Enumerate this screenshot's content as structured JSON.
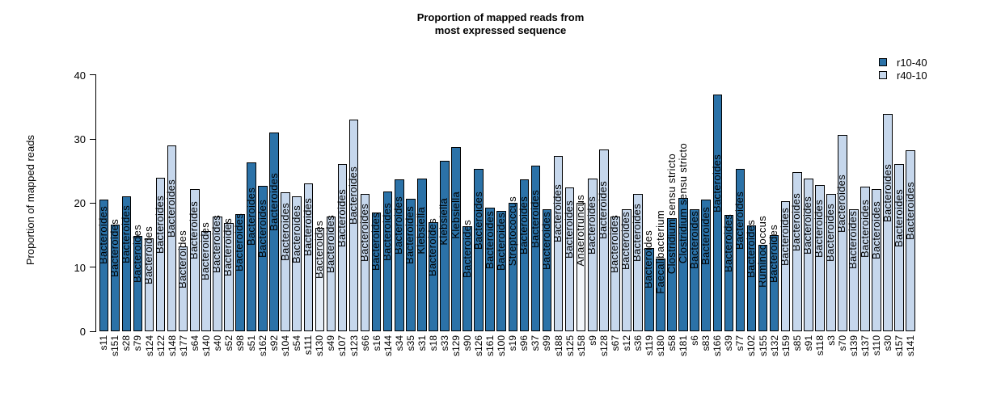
{
  "title": {
    "line1": "Proportion of mapped reads from",
    "line2": "most expressed sequence"
  },
  "y_axis": {
    "label": "Proportion of mapped reads",
    "ticks": [
      0,
      10,
      20,
      30,
      40
    ]
  },
  "legend": {
    "items": [
      {
        "label": "r10-40",
        "color": "#2b72a8"
      },
      {
        "label": "r40-10",
        "color": "#c6d7ec"
      }
    ]
  },
  "colors": {
    "dark_group": "#2b72a8",
    "light_group": "#c6d7ec",
    "bar_border": "#000000",
    "background": "#ffffff"
  },
  "chart_data": {
    "type": "bar",
    "title": "Proportion of mapped reads from most expressed sequence",
    "xlabel": "",
    "ylabel": "Proportion of mapped reads",
    "ylim": [
      0,
      40
    ],
    "grid": false,
    "legend_position": "top-right",
    "series_legend": [
      "r10-40",
      "r40-10"
    ],
    "categories": [
      "s11",
      "s151",
      "s28",
      "s79",
      "s124",
      "s122",
      "s148",
      "s177",
      "s64",
      "s140",
      "s40",
      "s52",
      "s98",
      "s51",
      "s162",
      "s92",
      "s104",
      "s54",
      "s111",
      "s130",
      "s49",
      "s107",
      "s123",
      "s66",
      "s16",
      "s144",
      "s34",
      "s35",
      "s31",
      "s18",
      "s33",
      "s129",
      "s90",
      "s126",
      "s161",
      "s100",
      "s19",
      "s96",
      "s37",
      "s99",
      "s188",
      "s125",
      "s158",
      "s9",
      "s128",
      "s67",
      "s12",
      "s36",
      "s119",
      "s180",
      "s58",
      "s181",
      "s6",
      "s83",
      "s166",
      "s39",
      "s77",
      "s102",
      "s155",
      "s132",
      "s159",
      "s85",
      "s91",
      "s118",
      "s3",
      "s70",
      "s139",
      "s137",
      "s110",
      "s30",
      "s157",
      "s141"
    ],
    "values": [
      20.6,
      16.6,
      21.0,
      14.9,
      14.5,
      23.9,
      29.0,
      13.2,
      22.2,
      15.7,
      17.9,
      16.9,
      18.3,
      26.4,
      22.7,
      31.0,
      21.7,
      21.0,
      23.1,
      16.1,
      17.9,
      26.1,
      33.0,
      21.5,
      18.6,
      21.8,
      23.7,
      20.7,
      23.8,
      17.0,
      26.6,
      28.7,
      16.4,
      25.3,
      19.3,
      18.8,
      20.0,
      23.7,
      25.8,
      19.0,
      27.4,
      22.4,
      20.0,
      23.8,
      28.4,
      17.9,
      19.0,
      21.5,
      13.0,
      11.3,
      17.7,
      20.8,
      19.1,
      20.5,
      36.9,
      18.1,
      25.3,
      16.5,
      13.5,
      15.0,
      20.3,
      24.8,
      23.8,
      22.8,
      21.4,
      30.6,
      19.1,
      22.6,
      22.2,
      33.9,
      26.1,
      28.2
    ],
    "bar_taxon_labels": [
      "Bacteroides",
      "Bacteroides",
      "Bacteroides",
      "Bacteroides",
      "Bacteroides",
      "Bacteroides",
      "Bacteroides",
      "Bacteroides",
      "Bacteroides",
      "Bacteroides",
      "Bacteroides",
      "Bacteroides",
      "Bacteroides",
      "Bacteroides",
      "Bacteroides",
      "Bacteroides",
      "Bacteroides",
      "Bacteroides",
      "Bacteroides",
      "Bacteroides",
      "Bacteroides",
      "Bacteroides",
      "Bacteroides",
      "Bacteroides",
      "Bacteroides",
      "Bacteroides",
      "Bacteroides",
      "Bacteroides",
      "Klebsiella",
      "Bacteroides",
      "Klebsiella",
      "Klebsiella",
      "Bacteroides",
      "Bacteroides",
      "Bacteroides",
      "Bacteroides",
      "Streptococcus",
      "Bacteroides",
      "Bacteroides",
      "Bacteroides",
      "Bacteroides",
      "Bacteroides",
      "Anaerotruncus",
      "Bacteroides",
      "Bacteroides",
      "Bacteroides",
      "Bacteroides",
      "Bacteroides",
      "Bacteroides",
      "Faecalibacterium",
      "Clostridium sensu stricto",
      "Clostridium sensu stricto",
      "Bacteroides",
      "Bacteroides",
      "Bacteroides",
      "Bacteroides",
      "Bacteroides",
      "Bacteroides",
      "Ruminococcus",
      "Bacteroides",
      "Bacteroides",
      "Bacteroides",
      "Bacteroides",
      "Bacteroides",
      "Bacteroides",
      "Bacteroides",
      "Bacteroides",
      "Bacteroides",
      "Bacteroides",
      "Bacteroides",
      "Bacteroides",
      "Bacteroides"
    ],
    "groups": [
      0,
      0,
      0,
      0,
      1,
      1,
      1,
      1,
      1,
      1,
      1,
      1,
      0,
      0,
      0,
      0,
      1,
      1,
      1,
      1,
      1,
      1,
      1,
      1,
      0,
      0,
      0,
      0,
      0,
      0,
      0,
      0,
      0,
      0,
      0,
      0,
      0,
      0,
      0,
      0,
      1,
      1,
      1,
      1,
      1,
      1,
      1,
      1,
      0,
      0,
      0,
      0,
      0,
      0,
      0,
      0,
      0,
      0,
      0,
      0,
      1,
      1,
      1,
      1,
      1,
      1,
      1,
      1,
      1,
      1,
      1,
      1
    ],
    "fill_overrides": {
      "s130": "#e4ecf6",
      "s158": "#f3f7fb"
    }
  }
}
